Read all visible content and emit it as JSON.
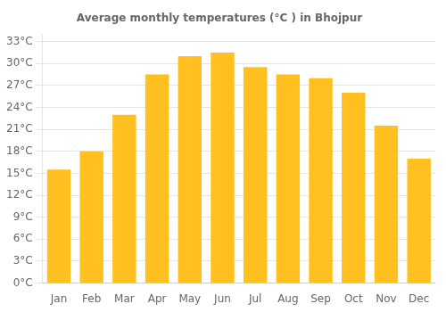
{
  "chart_data": {
    "type": "bar",
    "title": "Average monthly temperatures (°C ) in Bhojpur",
    "categories": [
      "Jan",
      "Feb",
      "Mar",
      "Apr",
      "May",
      "Jun",
      "Jul",
      "Aug",
      "Sep",
      "Oct",
      "Nov",
      "Dec"
    ],
    "values": [
      15.5,
      18.0,
      23.0,
      28.5,
      31.0,
      31.5,
      29.5,
      28.5,
      28.0,
      26.0,
      21.5,
      17.0
    ],
    "color": "#FFC020",
    "ylim": [
      0,
      34
    ],
    "yticks": [
      {
        "value": 0,
        "label": "0°C"
      },
      {
        "value": 3,
        "label": "3°C"
      },
      {
        "value": 6,
        "label": "6°C"
      },
      {
        "value": 9,
        "label": "9°C"
      },
      {
        "value": 12,
        "label": "12°C"
      },
      {
        "value": 15,
        "label": "15°C"
      },
      {
        "value": 18,
        "label": "18°C"
      },
      {
        "value": 21,
        "label": "21°C"
      },
      {
        "value": 24,
        "label": "24°C"
      },
      {
        "value": 27,
        "label": "27°C"
      },
      {
        "value": 30,
        "label": "30°C"
      },
      {
        "value": 33,
        "label": "33°C"
      }
    ],
    "grid": true
  }
}
